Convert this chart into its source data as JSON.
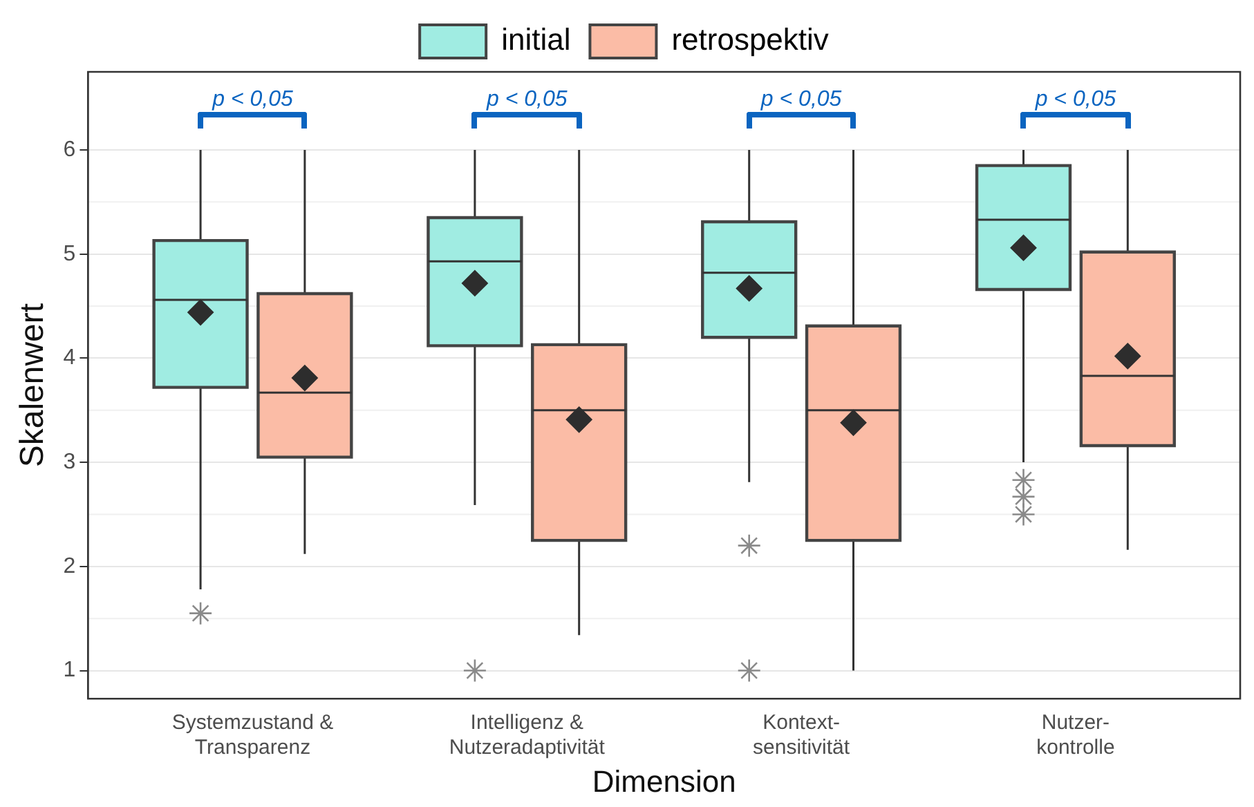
{
  "chart_data": {
    "type": "box",
    "xlabel": "Dimension",
    "ylabel": "Skalenwert",
    "categories": [
      "Systemzustand &\nTransparenz",
      "Intelligenz &\nNutzeradaptivität",
      "Kontext-\nsensitivität",
      "Nutzer-\nkontrolle"
    ],
    "series": [
      {
        "name": "initial",
        "color": "#a0ece2",
        "boxes": [
          {
            "low": 1.78,
            "q1": 3.72,
            "median": 4.56,
            "q3": 5.13,
            "high": 6,
            "mean": 4.44,
            "outliers": [
              1.55
            ]
          },
          {
            "low": 2.59,
            "q1": 4.12,
            "median": 4.93,
            "q3": 5.35,
            "high": 6,
            "mean": 4.72,
            "outliers": [
              1.0
            ]
          },
          {
            "low": 2.81,
            "q1": 4.2,
            "median": 4.82,
            "q3": 5.31,
            "high": 6,
            "mean": 4.67,
            "outliers": [
              2.2,
              1.0
            ]
          },
          {
            "low": 3.0,
            "q1": 4.66,
            "median": 5.33,
            "q3": 5.85,
            "high": 6,
            "mean": 5.06,
            "outliers": [
              2.83,
              2.67,
              2.5
            ]
          }
        ]
      },
      {
        "name": "retrospektiv",
        "color": "#fbbca6",
        "boxes": [
          {
            "low": 2.12,
            "q1": 3.05,
            "median": 3.67,
            "q3": 4.62,
            "high": 6,
            "mean": 3.81
          },
          {
            "low": 1.34,
            "q1": 2.25,
            "median": 3.5,
            "q3": 4.13,
            "high": 6,
            "mean": 3.41
          },
          {
            "low": 1.0,
            "q1": 2.25,
            "median": 3.5,
            "q3": 4.31,
            "high": 6,
            "mean": 3.38
          },
          {
            "low": 2.16,
            "q1": 3.16,
            "median": 3.83,
            "q3": 5.02,
            "high": 6,
            "mean": 4.02
          }
        ]
      }
    ],
    "ylim": [
      0.73,
      6.75
    ],
    "yticks": [
      1,
      2,
      3,
      4,
      5,
      6
    ],
    "grid": "y",
    "legend": "top",
    "annotations": [
      "p < 0,05",
      "p < 0,05",
      "p < 0,05",
      "p < 0,05"
    ]
  }
}
